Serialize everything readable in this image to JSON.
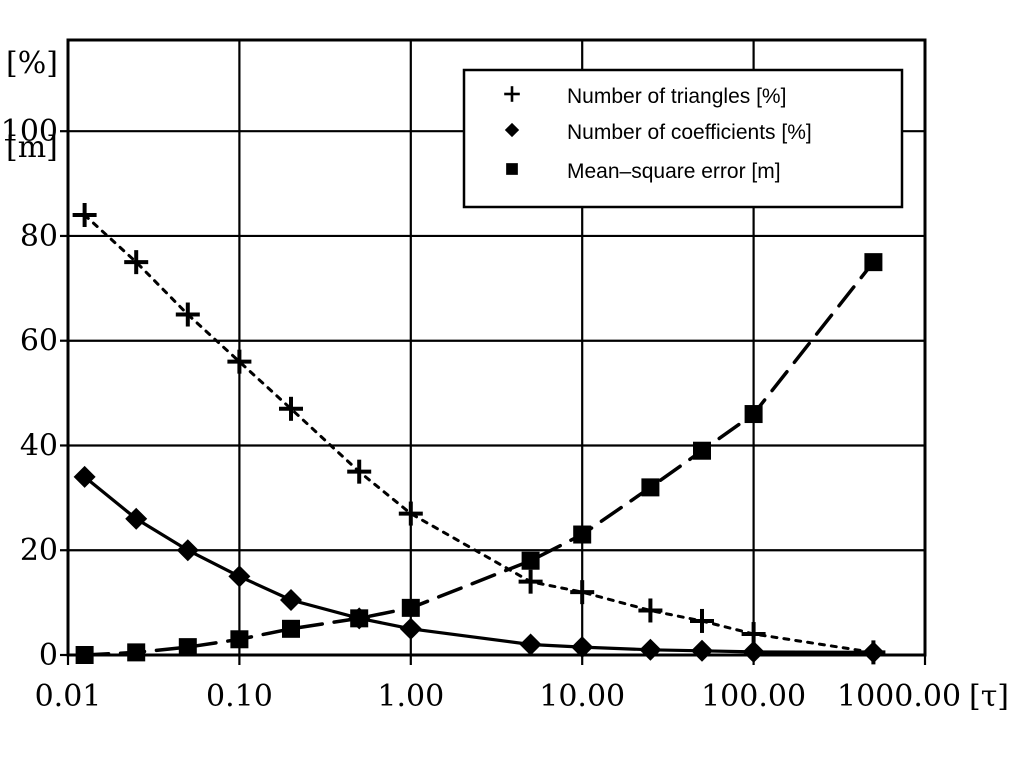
{
  "chart_data": {
    "type": "line",
    "x_scale": "log",
    "xlim": [
      0.01,
      1000
    ],
    "ylim": [
      0,
      105
    ],
    "grid": true,
    "legend_position": "top-right",
    "xlabel": "[τ]",
    "ylabel_top": "[%]",
    "ylabel_bottom": "[m]",
    "x_ticks": [
      {
        "value": 0.01,
        "label": "0.01"
      },
      {
        "value": 0.1,
        "label": "0.10"
      },
      {
        "value": 1,
        "label": "1.00"
      },
      {
        "value": 10,
        "label": "10.00"
      },
      {
        "value": 100,
        "label": "100.00"
      },
      {
        "value": 1000,
        "label": "1000.00"
      }
    ],
    "y_ticks": [
      {
        "value": 0,
        "label": "0"
      },
      {
        "value": 20,
        "label": "20"
      },
      {
        "value": 40,
        "label": "40"
      },
      {
        "value": 60,
        "label": "60"
      },
      {
        "value": 80,
        "label": "80"
      },
      {
        "value": 100,
        "label": "100"
      }
    ],
    "series": [
      {
        "name": "Number of triangles [%]",
        "marker": "plus",
        "line": "dotted",
        "x": [
          0.0125,
          0.025,
          0.05,
          0.1,
          0.2,
          0.5,
          1,
          5,
          10,
          25,
          50,
          100,
          500
        ],
        "y": [
          84,
          75,
          65,
          56,
          47,
          35,
          27,
          14,
          12,
          8.5,
          6.5,
          4,
          0.5
        ]
      },
      {
        "name": "Number of coefficients [%]",
        "marker": "diamond",
        "line": "solid",
        "x": [
          0.0125,
          0.025,
          0.05,
          0.1,
          0.2,
          0.5,
          1,
          5,
          10,
          25,
          50,
          100,
          500
        ],
        "y": [
          34,
          26,
          20,
          15,
          10.5,
          7,
          5,
          2,
          1.5,
          1,
          0.8,
          0.6,
          0.5
        ]
      },
      {
        "name": "Mean–square error [m]",
        "marker": "square",
        "line": "dashed",
        "x": [
          0.0125,
          0.025,
          0.05,
          0.1,
          0.2,
          0.5,
          1,
          5,
          10,
          25,
          50,
          100,
          500
        ],
        "y": [
          0,
          0.5,
          1.5,
          3,
          5,
          7,
          9,
          18,
          23,
          32,
          39,
          46,
          75
        ]
      }
    ]
  }
}
